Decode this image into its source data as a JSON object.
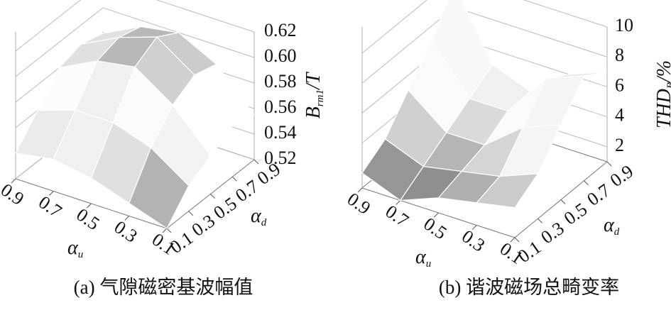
{
  "chart_data": [
    {
      "type": "surface",
      "caption": "(a) 气隙磁密基波幅值",
      "xlabel": "α",
      "xlabel_sub": "u",
      "ylabel": "α",
      "ylabel_sub": "d",
      "zlabel": "B",
      "zlabel_sub": "rm1",
      "zlabel_unit": "/T",
      "x": [
        0.1,
        0.3,
        0.5,
        0.7,
        0.9
      ],
      "y": [
        0.1,
        0.3,
        0.5,
        0.7,
        0.9
      ],
      "z": [
        [
          0.52,
          0.53,
          0.54,
          0.545,
          0.54
        ],
        [
          0.54,
          0.56,
          0.57,
          0.57,
          0.56
        ],
        [
          0.55,
          0.58,
          0.6,
          0.595,
          0.58
        ],
        [
          0.56,
          0.59,
          0.61,
          0.6,
          0.585
        ],
        [
          0.555,
          0.585,
          0.6,
          0.595,
          0.58
        ]
      ],
      "xlim": [
        0.1,
        0.9
      ],
      "ylim": [
        0.1,
        0.9
      ],
      "zlim": [
        0.52,
        0.62
      ],
      "xticks": [
        0.9,
        0.7,
        0.5,
        0.3,
        0.1
      ],
      "yticks": [
        0.1,
        0.3,
        0.5,
        0.7,
        0.9
      ],
      "zticks": [
        0.52,
        0.54,
        0.56,
        0.58,
        {
          "value": 0.6,
          "label": "0.60"
        },
        0.62
      ]
    },
    {
      "type": "surface",
      "caption": "(b) 谐波磁场总畸变率",
      "xlabel": "α",
      "xlabel_sub": "u",
      "ylabel": "α",
      "ylabel_sub": "d",
      "zlabel": "THD",
      "zlabel_sub": "B",
      "zlabel_unit": "/%",
      "x": [
        0.1,
        0.3,
        0.5,
        0.7,
        0.9
      ],
      "y": [
        0.1,
        0.3,
        0.5,
        0.7,
        0.9
      ],
      "z": [
        [
          3,
          2.5,
          2,
          1,
          2
        ],
        [
          4,
          3,
          2.5,
          2,
          3
        ],
        [
          6,
          5,
          3,
          3,
          5
        ],
        [
          8,
          7,
          4,
          4,
          7
        ],
        [
          7,
          6,
          4,
          5,
          9.5
        ]
      ],
      "xlim": [
        0.1,
        0.9
      ],
      "ylim": [
        0.1,
        0.9
      ],
      "zlim": [
        1,
        10
      ],
      "xticks": [
        0.9,
        0.7,
        0.5,
        0.3,
        0.1
      ],
      "yticks": [
        0.1,
        0.3,
        0.5,
        0.7,
        0.9
      ],
      "zticks": [
        2,
        4,
        6,
        8,
        10
      ]
    }
  ]
}
